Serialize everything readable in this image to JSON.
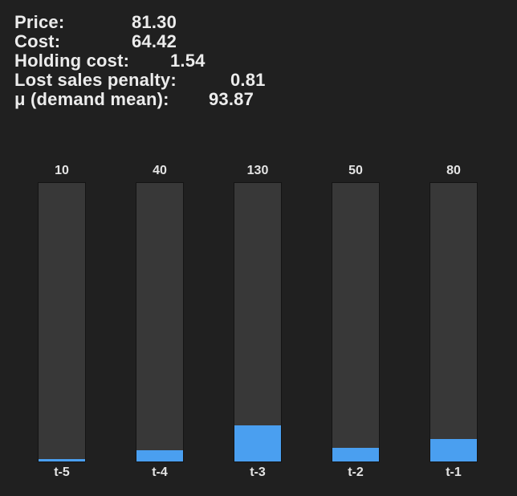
{
  "stats": {
    "price": {
      "label": "Price:",
      "value": "81.30"
    },
    "cost": {
      "label": "Cost:",
      "value": "64.42"
    },
    "holding_cost": {
      "label": "Holding cost:",
      "value": "1.54"
    },
    "lost_sales_penalty": {
      "label": "Lost sales penalty:",
      "value": "0.81"
    },
    "demand_mean": {
      "label": "μ (demand mean):",
      "value": "93.87"
    }
  },
  "history": {
    "max_value": 1000,
    "fill_color": "#4a9ff0",
    "track_color": "#383838",
    "bars": [
      {
        "period": "t-5",
        "value": 10,
        "label": "10"
      },
      {
        "period": "t-4",
        "value": 40,
        "label": "40"
      },
      {
        "period": "t-3",
        "value": 130,
        "label": "130"
      },
      {
        "period": "t-2",
        "value": 50,
        "label": "50"
      },
      {
        "period": "t-1",
        "value": 80,
        "label": "80"
      }
    ]
  }
}
